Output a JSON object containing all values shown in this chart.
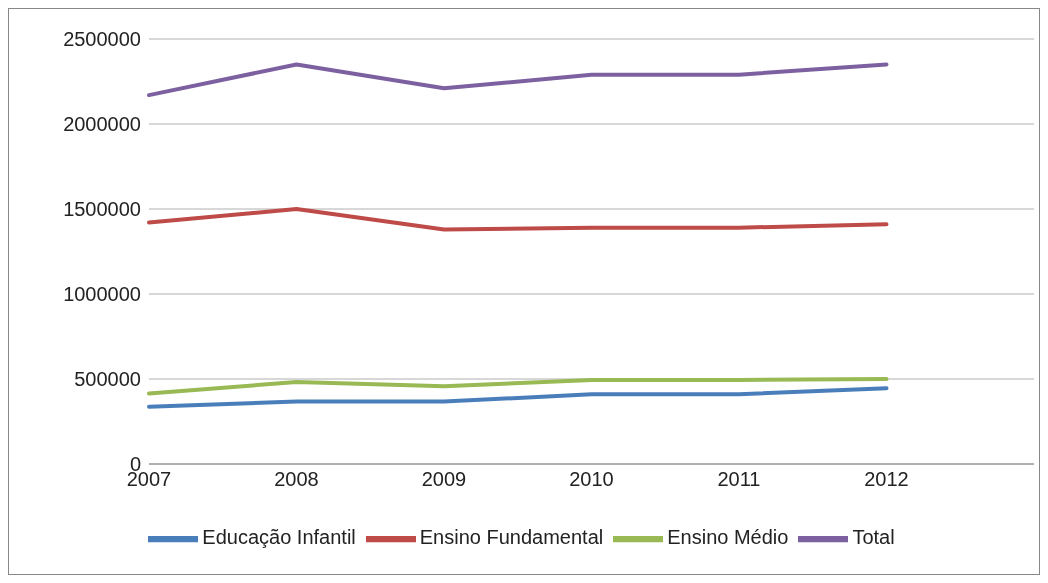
{
  "chart_data": {
    "type": "line",
    "categories": [
      "2007",
      "2008",
      "2009",
      "2010",
      "2011",
      "2012",
      null
    ],
    "series": [
      {
        "name": "Educação Infantil",
        "color": "#4a7ebb",
        "values": [
          337000,
          367000,
          367000,
          410000,
          410000,
          446000,
          null
        ]
      },
      {
        "name": "Ensino Fundamental",
        "color": "#be4b48",
        "values": [
          1420000,
          1500000,
          1380000,
          1390000,
          1390000,
          1410000,
          null
        ]
      },
      {
        "name": "Ensino Médio",
        "color": "#98b954",
        "values": [
          415000,
          482000,
          458000,
          494000,
          494000,
          500000,
          null
        ]
      },
      {
        "name": "Total",
        "color": "#7d60a0",
        "values": [
          2170000,
          2350000,
          2210000,
          2290000,
          2290000,
          2350000,
          null
        ]
      }
    ],
    "ylim": [
      0,
      2500000
    ],
    "yticks": [
      0,
      500000,
      1000000,
      1500000,
      2000000,
      2500000
    ],
    "grid": "y",
    "legend": "bottom",
    "marker": "none",
    "line_style": "solid"
  }
}
